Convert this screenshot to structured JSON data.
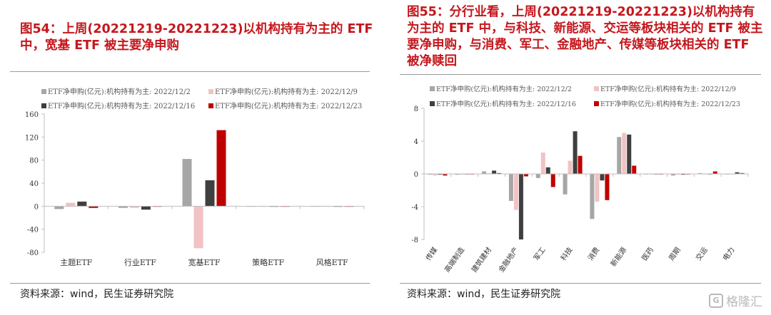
{
  "left": {
    "title": "图54：上周(20221219-20221223)以机构持有为主的 ETF 中，宽基 ETF 被主要净申购",
    "source": "资料来源：wind，民生证券研究院"
  },
  "right": {
    "title": "图55：分行业看，上周(20221219-20221223)以机构持有为主的 ETF 中，与科技、新能源、交运等板块相关的 ETF 被主要净申购，与消费、军工、金融地产、传媒等板块相关的 ETF 被净赎回",
    "source": "资料来源：wind，民生证券研究院"
  },
  "watermark": {
    "logo": "G",
    "text": "格隆汇"
  },
  "colors": [
    "#a6a6a6",
    "#f2c2c4",
    "#3f3f3f",
    "#c00000"
  ],
  "chart_data": [
    {
      "type": "bar",
      "categories": [
        "主题ETF",
        "行业ETF",
        "宽基ETF",
        "策略ETF",
        "风格ETF"
      ],
      "series": [
        {
          "name": "ETF净申购(亿元):机构持有为主: 2022/12/2",
          "values": [
            -5,
            -3,
            82,
            -1,
            0
          ]
        },
        {
          "name": "ETF净申购(亿元):机构持有为主: 2022/12/9",
          "values": [
            6,
            -3,
            -73,
            -0.5,
            0
          ]
        },
        {
          "name": "ETF净申购(亿元):机构持有为主: 2022/12/16",
          "values": [
            8,
            -6,
            45,
            -0.5,
            0
          ]
        },
        {
          "name": "ETF净申购(亿元):机构持有为主: 2022/12/23",
          "values": [
            -3,
            -1,
            132,
            -0.5,
            0
          ]
        }
      ],
      "yticks": [
        "160",
        "120",
        "80",
        "40",
        "0",
        "-40",
        "-80"
      ],
      "ylim": [
        -80,
        160
      ],
      "legend_position": "top"
    },
    {
      "type": "bar",
      "categories": [
        "传媒",
        "高端制造",
        "建筑建材",
        "金融地产",
        "军工",
        "科技",
        "消费",
        "新能源",
        "医药",
        "周期",
        "交运",
        "电力"
      ],
      "series": [
        {
          "name": "ETF净申购(亿元):机构持有为主: 2022/12/2",
          "values": [
            -0.1,
            -0.1,
            0.3,
            -3.3,
            -0.5,
            -2.5,
            -5.5,
            4.5,
            0,
            -0.2,
            0.1,
            0
          ]
        },
        {
          "name": "ETF净申购(亿元):机构持有为主: 2022/12/9",
          "values": [
            -0.2,
            -0.1,
            0.1,
            -4.4,
            2.6,
            1.6,
            -3.4,
            5.0,
            0,
            -0.1,
            0,
            0
          ]
        },
        {
          "name": "ETF净申购(亿元):机构持有为主: 2022/12/16",
          "values": [
            -0.1,
            0,
            0.4,
            -8.0,
            0.8,
            5.2,
            -0.8,
            4.8,
            0,
            -0.1,
            0,
            0.2
          ]
        },
        {
          "name": "ETF净申购(亿元):机构持有为主: 2022/12/23",
          "values": [
            -0.2,
            0,
            0.1,
            -0.3,
            -1.6,
            2.2,
            -3.2,
            1.0,
            0,
            0,
            0.3,
            0.1
          ]
        }
      ],
      "yticks": [
        "8",
        "4",
        "0",
        "-4",
        "-8"
      ],
      "ylim": [
        -8,
        8
      ],
      "legend_position": "top"
    }
  ]
}
